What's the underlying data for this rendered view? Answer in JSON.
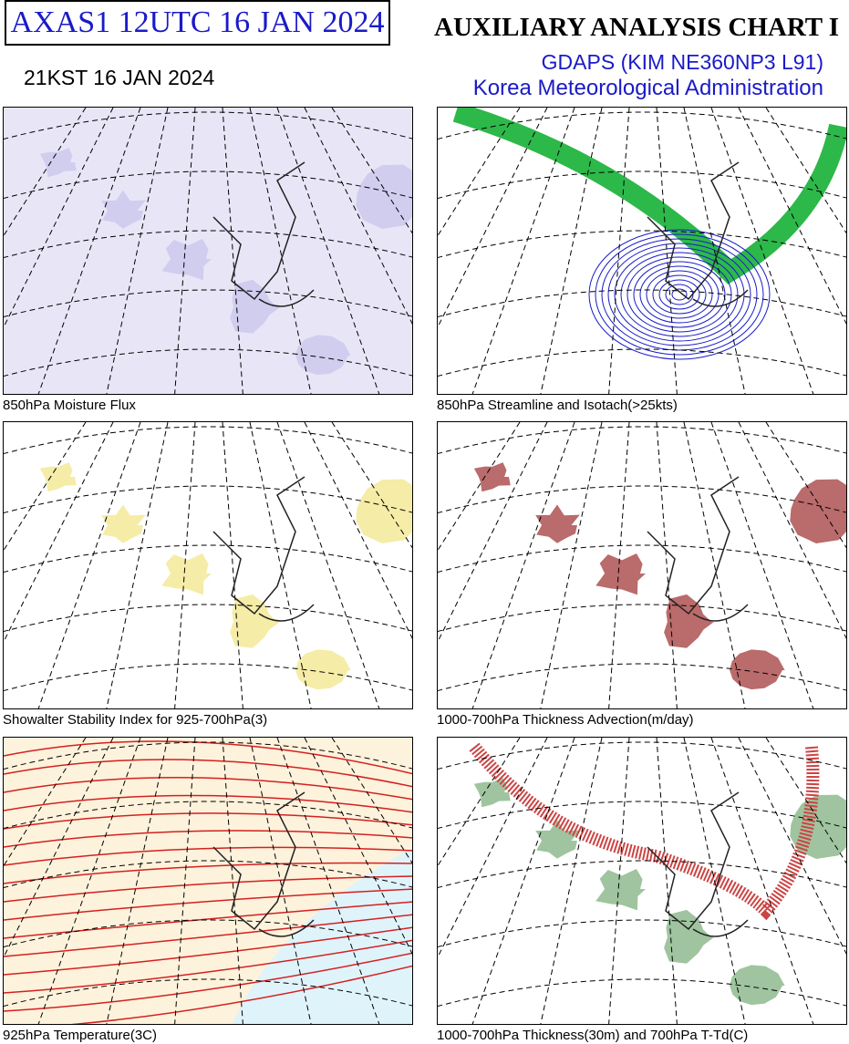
{
  "header": {
    "code": "AXAS1  12UTC 16 JAN 2024",
    "local_time": "21KST 16 JAN 2024",
    "title": "AUXILIARY ANALYSIS CHART  I",
    "model": "GDAPS (KIM NE360NP3 L91)",
    "agency": "Korea Meteorological Administration"
  },
  "panels": [
    {
      "caption": "850hPa Moisture Flux"
    },
    {
      "caption": "850hPa Streamline and Isotach(>25kts)"
    },
    {
      "caption": "Showalter Stability Index for 925-700hPa(3)"
    },
    {
      "caption": "1000-700hPa Thickness Advection(m/day)"
    },
    {
      "caption": "925hPa Temperature(3C)"
    },
    {
      "caption": "1000-700hPa Thickness(30m) and 700hPa T-Td(C)"
    }
  ]
}
